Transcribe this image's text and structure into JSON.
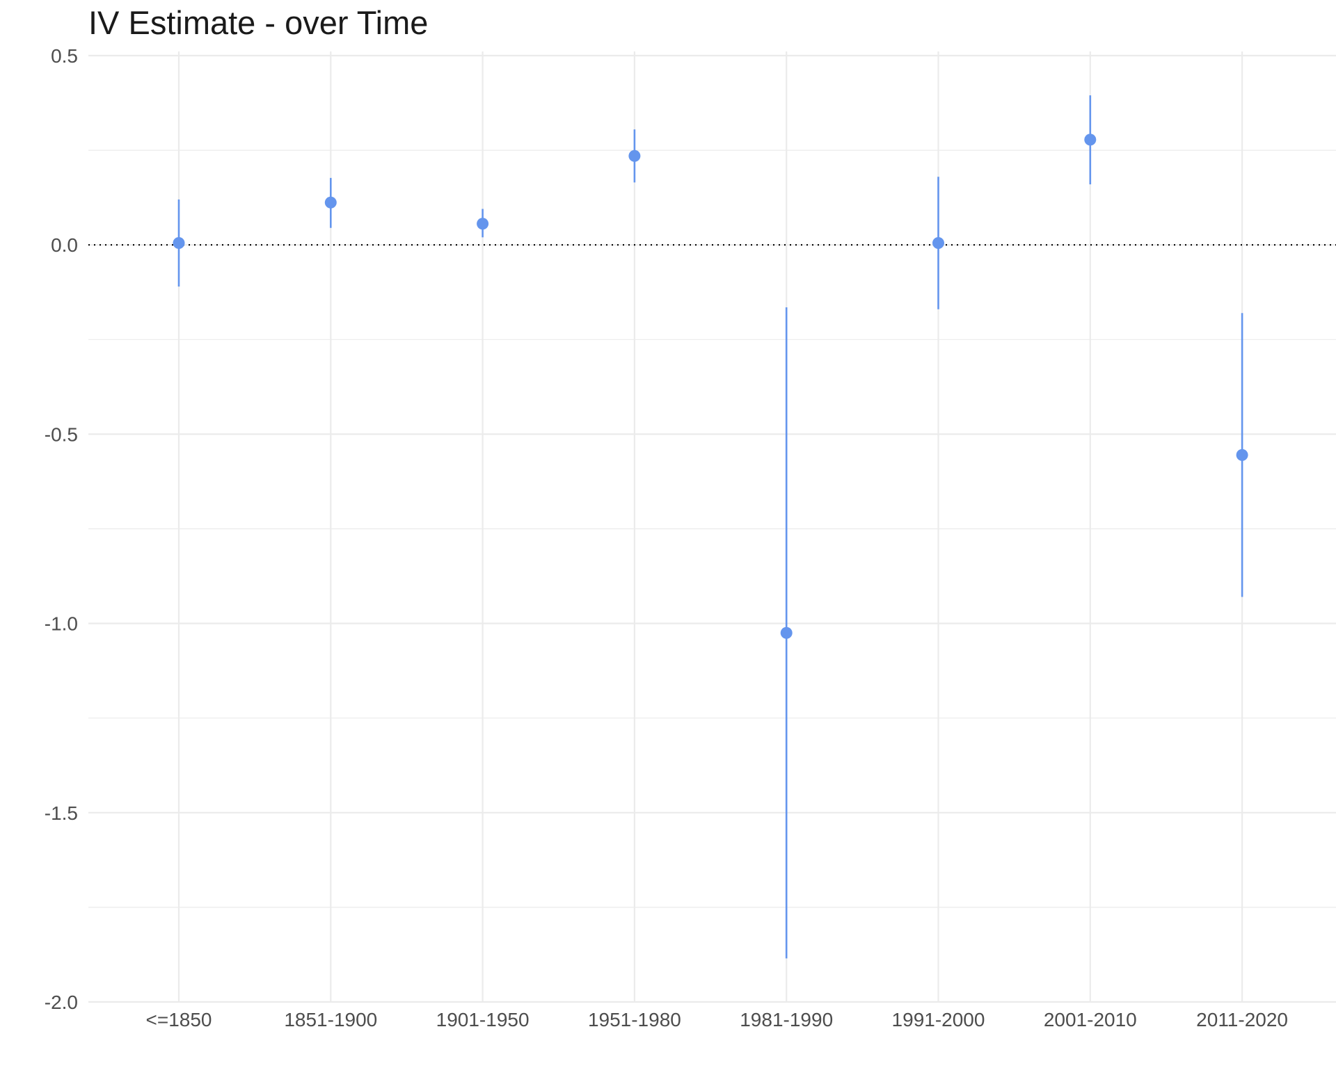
{
  "chart_data": {
    "type": "scatter",
    "title": "IV Estimate - over Time",
    "xlabel": "",
    "ylabel": "",
    "categories": [
      "<=1850",
      "1851-1900",
      "1901-1950",
      "1951-1980",
      "1981-1990",
      "1991-2000",
      "2001-2010",
      "2011-2020"
    ],
    "estimates": [
      0.005,
      0.112,
      0.056,
      0.235,
      -1.025,
      0.005,
      0.278,
      -0.555
    ],
    "ci_lower": [
      -0.11,
      0.045,
      0.02,
      0.165,
      -1.885,
      -0.17,
      0.16,
      -0.93
    ],
    "ci_upper": [
      0.12,
      0.177,
      0.095,
      0.305,
      -0.165,
      0.18,
      0.395,
      -0.18
    ],
    "ylim": [
      -2.0,
      0.5
    ],
    "y_ticks": [
      0.5,
      0.0,
      -0.5,
      -1.0,
      -1.5,
      -2.0
    ],
    "y_tick_labels": [
      "0.5",
      "0.0",
      "-0.5",
      "-1.0",
      "-1.5",
      "-2.0"
    ],
    "reference_line": 0.0,
    "grid": true,
    "legend": "none",
    "point_color": "#6495ed",
    "grid_color": "#ebebeb",
    "reference_line_color": "#000000"
  }
}
